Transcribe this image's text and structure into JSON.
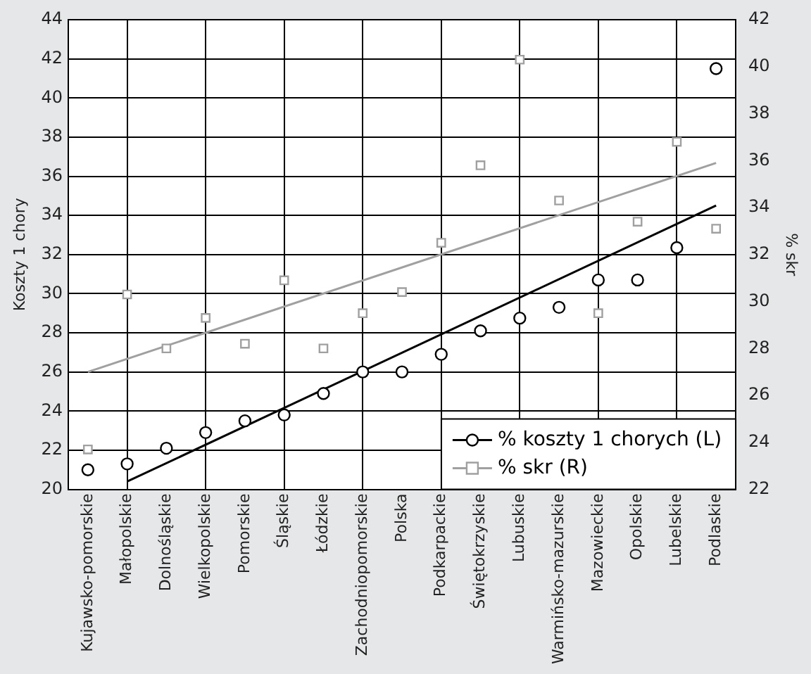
{
  "chart_data": {
    "type": "scatter",
    "ylabel": "Koszty 1 chory",
    "y2label": "% skr",
    "categories": [
      "Kujawsko-pomorskie",
      "Małopolskie",
      "Dolnośląskie",
      "Wielkopolskie",
      "Pomorskie",
      "Śląskie",
      "Łódzkie",
      "Zachodniopomorskie",
      "Polska",
      "Podkarpackie",
      "Świętokrzyskie",
      "Lubuskie",
      "Warmińsko-mazurskie",
      "Mazowieckie",
      "Opolskie",
      "Lubelskie",
      "Podlaskie"
    ],
    "series": [
      {
        "name": "% koszty 1 chorych (L)",
        "marker": "circle",
        "color": "#000000",
        "values": [
          21.0,
          21.3,
          22.1,
          22.9,
          23.5,
          23.8,
          24.9,
          26.0,
          26.0,
          26.9,
          28.1,
          28.75,
          29.3,
          30.7,
          30.7,
          32.35,
          41.5
        ]
      },
      {
        "name": "% skr (R)",
        "marker": "square",
        "axis": "y2",
        "color": "#a0a0a0",
        "values": [
          23.7,
          30.3,
          28.0,
          29.3,
          28.2,
          30.9,
          28.0,
          29.5,
          30.4,
          32.5,
          35.8,
          40.3,
          34.3,
          29.5,
          33.4,
          36.8,
          33.1
        ]
      },
      {
        "type": "line",
        "marker": "none",
        "color": "#000000",
        "x": [
          "Małopolskie",
          "Podlaskie"
        ],
        "values": [
          20.4,
          34.5
        ]
      },
      {
        "type": "line",
        "marker": "none",
        "axis": "y2",
        "color": "#a0a0a0",
        "x": [
          "Kujawsko-pomorskie",
          "Podlaskie"
        ],
        "values": [
          27.0,
          35.9
        ]
      }
    ],
    "ylim": [
      20,
      44
    ],
    "yticks": [
      20,
      22,
      24,
      26,
      28,
      30,
      32,
      34,
      36,
      38,
      40,
      42,
      44
    ],
    "y2lim": [
      22,
      42
    ],
    "y2ticks": [
      22,
      24,
      26,
      28,
      30,
      32,
      34,
      36,
      38,
      40,
      42
    ],
    "grid": true,
    "legend": "bottom right"
  }
}
